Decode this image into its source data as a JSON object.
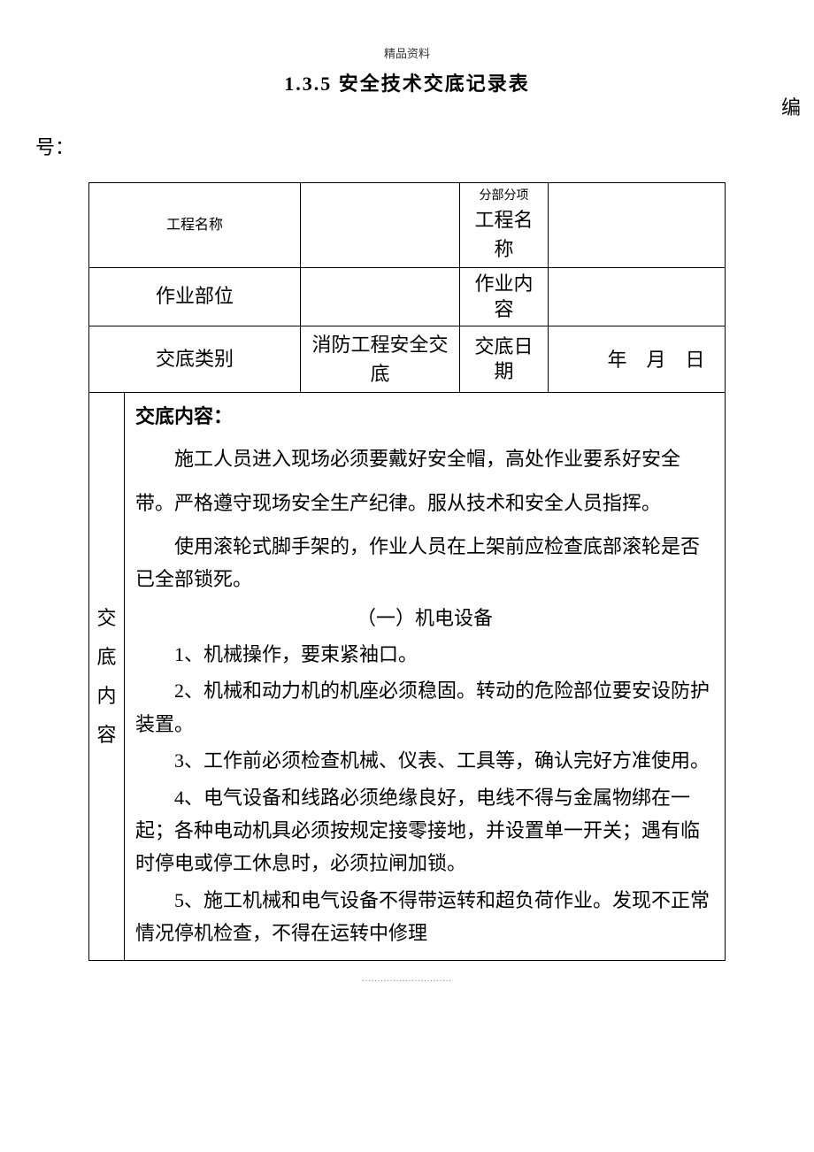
{
  "header_small": "精品资料",
  "title": "1.3.5  安全技术交底记录表",
  "bianhao_label_1": "编",
  "bianhao_label_2": "号：",
  "table": {
    "r1c1": "工程名称",
    "r1c2": "",
    "r1c3_small": "分部分项",
    "r1c3_big": "工程名称",
    "r1c4": "",
    "r2c1": "作业部位",
    "r2c2": "",
    "r2c3": "作业内容",
    "r2c4": "",
    "r3c1": "交底类别",
    "r3c2": "消防工程安全交底",
    "r3c3": "交底日期",
    "r3c4": "        年    月    日"
  },
  "content": {
    "side_label": "交底内容",
    "heading": "交底内容：",
    "para1": "施工人员进入现场必须要戴好安全帽，高处作业要系好安全带。严格遵守现场安全生产纪律。服从技术和安全人员指挥。",
    "para2": "使用滚轮式脚手架的，作业人员在上架前应检查底部滚轮是否已全部锁死。",
    "section1": "（一）机电设备",
    "item1": "1、机械操作，要束紧袖口。",
    "item2": "2、机械和动力机的机座必须稳固。转动的危险部位要安设防护装置。",
    "item3": "3、工作前必须检查机械、仪表、工具等，确认完好方准使用。",
    "item4": "4、电气设备和线路必须绝缘良好，电线不得与金属物绑在一起；各种电动机具必须按规定接零接地，并设置单一开关；遇有临时停电或停工休息时，必须拉闸加锁。",
    "item5": "5、施工机械和电气设备不得带运转和超负荷作业。发现不正常情况停机检查，不得在运转中修理"
  },
  "footer_dots": "............................."
}
